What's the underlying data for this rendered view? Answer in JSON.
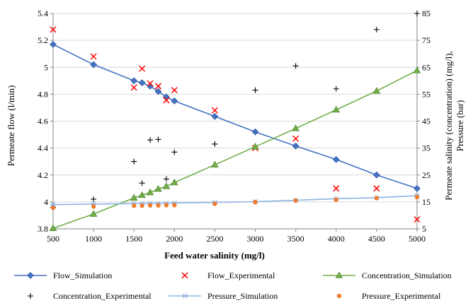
{
  "chart_data": {
    "type": "line",
    "title": "",
    "xlabel": "Feed water salinity (mg/l)",
    "ylabel": "Permeate  flow (l/min)",
    "y2label_line1": "Permeate salinity (concentration)  (mg/l),",
    "y2label_line2": "Pressure (bar)",
    "xlim": [
      500,
      5000
    ],
    "ylim": [
      3.8,
      5.4
    ],
    "y2lim": [
      5,
      85
    ],
    "x_ticks": [
      "500",
      "1000",
      "1500",
      "2000",
      "2500",
      "3000",
      "3500",
      "4000",
      "4500",
      "5000"
    ],
    "y_ticks": [
      "3.8",
      "4",
      "4.2",
      "4.4",
      "4.6",
      "4.8",
      "5",
      "5.2",
      "5.4"
    ],
    "y2_ticks": [
      "5",
      "15",
      "25",
      "35",
      "45",
      "55",
      "65",
      "75",
      "85"
    ],
    "grid": "horizontal major gridlines",
    "legend_position": "bottom",
    "colors": {
      "flow_sim": "#4472C4",
      "flow_exp": "#FF0000",
      "conc_sim": "#70AD47",
      "conc_exp": "#000000",
      "pres_sim": "#8DB4E2",
      "pres_exp": "#ED7D31"
    },
    "series": [
      {
        "key": "flow_sim",
        "name": "Flow_Simulation",
        "axis": "left",
        "style": "line-diamond",
        "points": [
          [
            500,
            5.17
          ],
          [
            1000,
            5.02
          ],
          [
            1500,
            4.9
          ],
          [
            1600,
            4.885
          ],
          [
            1700,
            4.86
          ],
          [
            1800,
            4.82
          ],
          [
            1900,
            4.78
          ],
          [
            2000,
            4.75
          ],
          [
            2500,
            4.635
          ],
          [
            3000,
            4.52
          ],
          [
            3500,
            4.415
          ],
          [
            4000,
            4.315
          ],
          [
            4500,
            4.2
          ],
          [
            5000,
            4.1
          ]
        ]
      },
      {
        "key": "flow_exp",
        "name": "Flow_Experimental",
        "axis": "left",
        "style": "x",
        "points": [
          [
            500,
            5.28
          ],
          [
            1000,
            5.08
          ],
          [
            1500,
            4.85
          ],
          [
            1600,
            4.99
          ],
          [
            1700,
            4.88
          ],
          [
            1800,
            4.86
          ],
          [
            1900,
            4.755
          ],
          [
            2000,
            4.83
          ],
          [
            2500,
            4.68
          ],
          [
            3000,
            4.4
          ],
          [
            3500,
            4.47
          ],
          [
            4000,
            4.1
          ],
          [
            4500,
            4.1
          ],
          [
            5000,
            3.87
          ]
        ]
      },
      {
        "key": "conc_sim",
        "name": "Concentration_Simulation",
        "axis": "right",
        "style": "line-triangle",
        "points": [
          [
            500,
            5.2
          ],
          [
            1000,
            10.5
          ],
          [
            1500,
            16.5
          ],
          [
            1600,
            17.5
          ],
          [
            1700,
            18.5
          ],
          [
            1800,
            19.8
          ],
          [
            1900,
            20.8
          ],
          [
            2000,
            22.2
          ],
          [
            2500,
            28.8
          ],
          [
            3000,
            35.5
          ],
          [
            3500,
            42.3
          ],
          [
            4000,
            49.2
          ],
          [
            4500,
            56.2
          ],
          [
            5000,
            63.8
          ]
        ]
      },
      {
        "key": "conc_exp",
        "name": "Concentration_Experimental",
        "axis": "right",
        "style": "plus",
        "points": [
          [
            500,
            13
          ],
          [
            1000,
            16
          ],
          [
            1500,
            30
          ],
          [
            1600,
            22
          ],
          [
            1700,
            38
          ],
          [
            1800,
            38.2
          ],
          [
            1900,
            23.5
          ],
          [
            2000,
            33.5
          ],
          [
            2500,
            36.5
          ],
          [
            3000,
            56.5
          ],
          [
            3500,
            65.5
          ],
          [
            4000,
            57
          ],
          [
            4500,
            79
          ],
          [
            5000,
            85
          ]
        ]
      },
      {
        "key": "pres_sim",
        "name": "Pressure_Simulation",
        "axis": "right",
        "style": "line-asterisk",
        "points": [
          [
            500,
            14
          ],
          [
            1000,
            14.2
          ],
          [
            1500,
            14.4
          ],
          [
            1600,
            14.4
          ],
          [
            1700,
            14.5
          ],
          [
            1800,
            14.5
          ],
          [
            1900,
            14.5
          ],
          [
            2000,
            14.6
          ],
          [
            2500,
            14.8
          ],
          [
            3000,
            15.1
          ],
          [
            3500,
            15.6
          ],
          [
            4000,
            16.2
          ],
          [
            4500,
            16.6
          ],
          [
            5000,
            17.3
          ]
        ]
      },
      {
        "key": "pres_exp",
        "name": "Pressure_Experimental",
        "axis": "right",
        "style": "dot",
        "points": [
          [
            500,
            12.8
          ],
          [
            1000,
            13.3
          ],
          [
            1500,
            13.6
          ],
          [
            1600,
            13.6
          ],
          [
            1700,
            13.7
          ],
          [
            1800,
            13.7
          ],
          [
            1900,
            13.8
          ],
          [
            2000,
            13.8
          ],
          [
            2500,
            14.3
          ],
          [
            3000,
            14.9
          ],
          [
            3500,
            15.5
          ],
          [
            4000,
            15.8
          ],
          [
            4500,
            16.4
          ],
          [
            5000,
            16.8
          ]
        ]
      }
    ]
  }
}
